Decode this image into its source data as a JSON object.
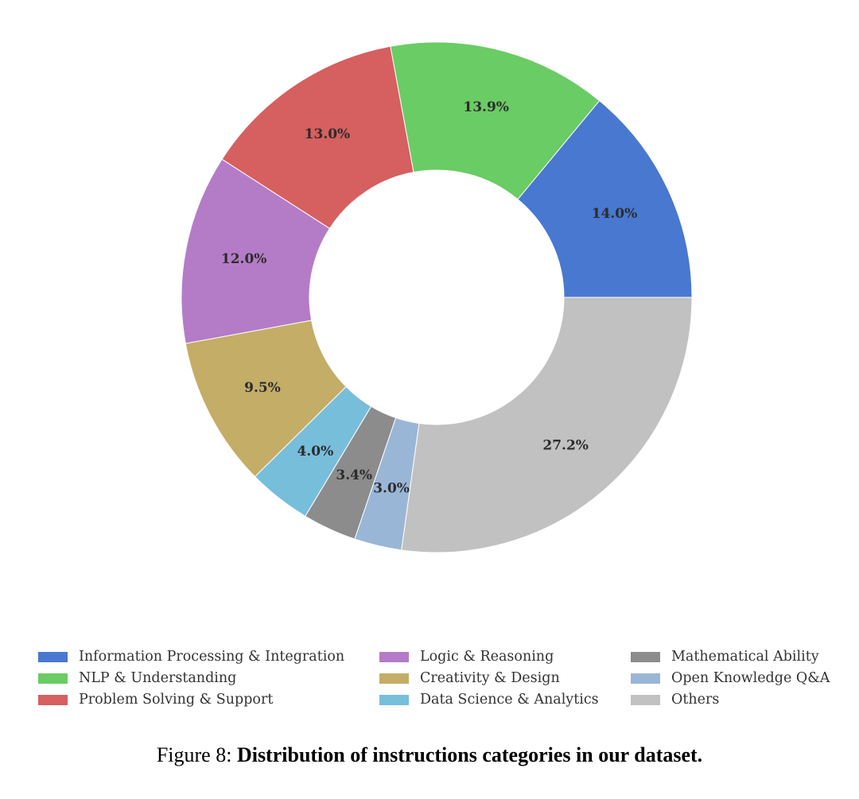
{
  "chart_data": {
    "type": "pie",
    "variant": "donut",
    "start_angle_deg": 0,
    "direction": "counterclockwise",
    "slices": [
      {
        "name": "Information Processing & Integration",
        "value": 14.0,
        "label": "14.0%",
        "color": "#4878d0"
      },
      {
        "name": "NLP & Understanding",
        "value": 13.9,
        "label": "13.9%",
        "color": "#6acc64"
      },
      {
        "name": "Problem Solving & Support",
        "value": 13.0,
        "label": "13.0%",
        "color": "#d65f5f"
      },
      {
        "name": "Logic & Reasoning",
        "value": 12.0,
        "label": "12.0%",
        "color": "#b47cc7"
      },
      {
        "name": "Creativity & Design",
        "value": 9.5,
        "label": "9.5%",
        "color": "#c4ad66"
      },
      {
        "name": "Data Science & Analytics",
        "value": 4.0,
        "label": "4.0%",
        "color": "#77bedb"
      },
      {
        "name": "Mathematical Ability",
        "value": 3.4,
        "label": "3.4%",
        "color": "#8c8c8c"
      },
      {
        "name": "Open Knowledge Q&A",
        "value": 3.0,
        "label": "3.0%",
        "color": "#9ab6d6"
      },
      {
        "name": "Others",
        "value": 27.2,
        "label": "27.2%",
        "color": "#c1c1c1"
      }
    ],
    "legend_placement": "bottom",
    "legend_columns": 3
  },
  "caption": {
    "prefix": "Figure 8: ",
    "bold": "Distribution of instructions categories in our dataset."
  }
}
